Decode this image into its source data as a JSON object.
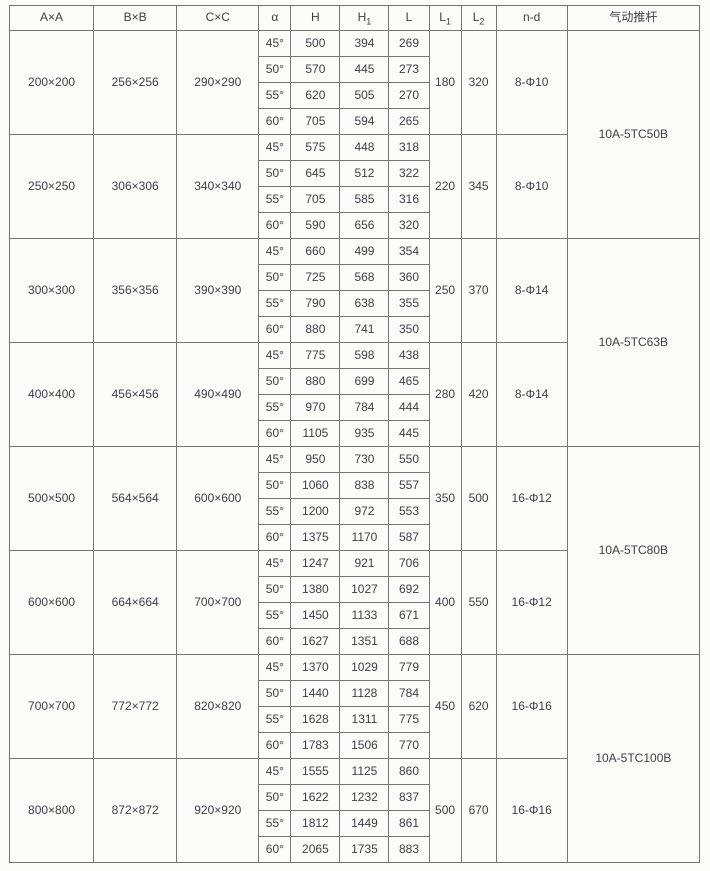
{
  "headers": {
    "axa": "A×A",
    "bxb": "B×B",
    "cxc": "C×C",
    "alpha": "α",
    "h": "H",
    "h1_base": "H",
    "h1_sub": "1",
    "l": "L",
    "l1_base": "L",
    "l1_sub": "1",
    "l2_base": "L",
    "l2_sub": "2",
    "nd": "n-d",
    "actuator": "气动推杆"
  },
  "blocks": [
    {
      "axa": "200×200",
      "bxb": "256×256",
      "cxc": "290×290",
      "l1": "180",
      "l2": "320",
      "nd": "8-Φ10",
      "rows": [
        {
          "alpha": "45°",
          "h": "500",
          "h1": "394",
          "l": "269"
        },
        {
          "alpha": "50°",
          "h": "570",
          "h1": "445",
          "l": "273"
        },
        {
          "alpha": "55°",
          "h": "620",
          "h1": "505",
          "l": "270"
        },
        {
          "alpha": "60°",
          "h": "705",
          "h1": "594",
          "l": "265"
        }
      ]
    },
    {
      "axa": "250×250",
      "bxb": "306×306",
      "cxc": "340×340",
      "l1": "220",
      "l2": "345",
      "nd": "8-Φ10",
      "rows": [
        {
          "alpha": "45°",
          "h": "575",
          "h1": "448",
          "l": "318"
        },
        {
          "alpha": "50°",
          "h": "645",
          "h1": "512",
          "l": "322"
        },
        {
          "alpha": "55°",
          "h": "705",
          "h1": "585",
          "l": "316"
        },
        {
          "alpha": "60°",
          "h": "590",
          "h1": "656",
          "l": "320"
        }
      ]
    },
    {
      "axa": "300×300",
      "bxb": "356×356",
      "cxc": "390×390",
      "l1": "250",
      "l2": "370",
      "nd": "8-Φ14",
      "rows": [
        {
          "alpha": "45°",
          "h": "660",
          "h1": "499",
          "l": "354"
        },
        {
          "alpha": "50°",
          "h": "725",
          "h1": "568",
          "l": "360"
        },
        {
          "alpha": "55°",
          "h": "790",
          "h1": "638",
          "l": "355"
        },
        {
          "alpha": "60°",
          "h": "880",
          "h1": "741",
          "l": "350"
        }
      ]
    },
    {
      "axa": "400×400",
      "bxb": "456×456",
      "cxc": "490×490",
      "l1": "280",
      "l2": "420",
      "nd": "8-Φ14",
      "rows": [
        {
          "alpha": "45°",
          "h": "775",
          "h1": "598",
          "l": "438"
        },
        {
          "alpha": "50°",
          "h": "880",
          "h1": "699",
          "l": "465"
        },
        {
          "alpha": "55°",
          "h": "970",
          "h1": "784",
          "l": "444"
        },
        {
          "alpha": "60°",
          "h": "1105",
          "h1": "935",
          "l": "445"
        }
      ]
    },
    {
      "axa": "500×500",
      "bxb": "564×564",
      "cxc": "600×600",
      "l1": "350",
      "l2": "500",
      "nd": "16-Φ12",
      "rows": [
        {
          "alpha": "45°",
          "h": "950",
          "h1": "730",
          "l": "550"
        },
        {
          "alpha": "50°",
          "h": "1060",
          "h1": "838",
          "l": "557"
        },
        {
          "alpha": "55°",
          "h": "1200",
          "h1": "972",
          "l": "553"
        },
        {
          "alpha": "60°",
          "h": "1375",
          "h1": "1170",
          "l": "587"
        }
      ]
    },
    {
      "axa": "600×600",
      "bxb": "664×664",
      "cxc": "700×700",
      "l1": "400",
      "l2": "550",
      "nd": "16-Φ12",
      "rows": [
        {
          "alpha": "45°",
          "h": "1247",
          "h1": "921",
          "l": "706"
        },
        {
          "alpha": "50°",
          "h": "1380",
          "h1": "1027",
          "l": "692"
        },
        {
          "alpha": "55°",
          "h": "1450",
          "h1": "1133",
          "l": "671"
        },
        {
          "alpha": "60°",
          "h": "1627",
          "h1": "1351",
          "l": "688"
        }
      ]
    },
    {
      "axa": "700×700",
      "bxb": "772×772",
      "cxc": "820×820",
      "l1": "450",
      "l2": "620",
      "nd": "16-Φ16",
      "rows": [
        {
          "alpha": "45°",
          "h": "1370",
          "h1": "1029",
          "l": "779"
        },
        {
          "alpha": "50°",
          "h": "1440",
          "h1": "1128",
          "l": "784"
        },
        {
          "alpha": "55°",
          "h": "1628",
          "h1": "1311",
          "l": "775"
        },
        {
          "alpha": "60°",
          "h": "1783",
          "h1": "1506",
          "l": "770"
        }
      ]
    },
    {
      "axa": "800×800",
      "bxb": "872×872",
      "cxc": "920×920",
      "l1": "500",
      "l2": "670",
      "nd": "16-Φ16",
      "rows": [
        {
          "alpha": "45°",
          "h": "1555",
          "h1": "1125",
          "l": "860"
        },
        {
          "alpha": "50°",
          "h": "1622",
          "h1": "1232",
          "l": "837"
        },
        {
          "alpha": "55°",
          "h": "1812",
          "h1": "1449",
          "l": "861"
        },
        {
          "alpha": "60°",
          "h": "2065",
          "h1": "1735",
          "l": "883"
        }
      ]
    }
  ],
  "actuators": [
    {
      "label": "10A-5TC50B"
    },
    {
      "label": "10A-5TC63B"
    },
    {
      "label": "10A-5TC80B"
    },
    {
      "label": "10A-5TC100B"
    }
  ]
}
